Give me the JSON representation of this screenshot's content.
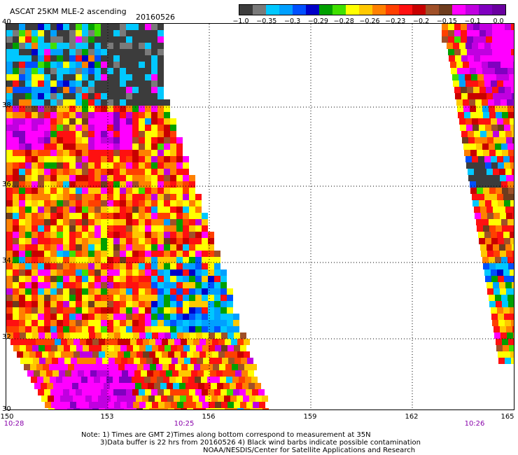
{
  "header": {
    "title": "ASCAT 25KM MLE-2 ascending",
    "date": "20160526"
  },
  "colorbar": {
    "colors": [
      "#3c3c3c",
      "#7a7a7a",
      "#00c8ff",
      "#00a0ff",
      "#0050ff",
      "#0000c8",
      "#00a000",
      "#40e000",
      "#ffff00",
      "#ffc800",
      "#ff8000",
      "#ff4000",
      "#ff1010",
      "#c80000",
      "#a05028",
      "#6e3c1e",
      "#ff00ff",
      "#c000e0",
      "#8000c0",
      "#6a00a0"
    ],
    "labels": [
      "−1.0",
      "−0.35",
      "−0.3",
      "−0.29",
      "−0.28",
      "−0.26",
      "−0.23",
      "−0.2",
      "−0.15",
      "−0.1",
      "0.0"
    ]
  },
  "map": {
    "lat_labels": [
      "40",
      "38",
      "36",
      "34",
      "32",
      "30"
    ],
    "lon_labels": [
      "150",
      "153",
      "156",
      "159",
      "162",
      "165"
    ],
    "time_labels": [
      "10:28",
      "10:25",
      "10:26"
    ]
  },
  "notes": {
    "line1": "Note: 1) Times are GMT 2)Times along bottom correspond to measurement at 35N",
    "line2": "3)Data buffer is 22 hrs from 20160526 4) Black wind barbs indicate possible contamination",
    "line3": "NOAA/NESDIS/Center for Satellite Applications and Research"
  }
}
